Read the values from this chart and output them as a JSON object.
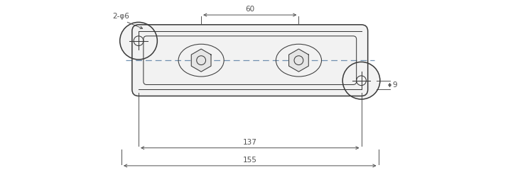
{
  "bg_color": "#ffffff",
  "line_color": "#3a3a3a",
  "dim_color": "#505050",
  "dash_color": "#7090b0",
  "figsize": [
    7.15,
    2.71
  ],
  "dpi": 100,
  "labels": {
    "top_dim": "60",
    "mid_dim": "137",
    "bot_dim": "155",
    "right_dim": "9",
    "hole_label": "2-φ6"
  },
  "xlim": [
    -12,
    172
  ],
  "ylim": [
    -48,
    68
  ]
}
